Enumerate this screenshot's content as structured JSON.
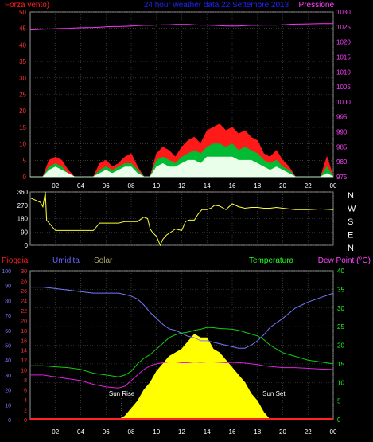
{
  "title": "24 hour weather data 22 Settembre 2013",
  "colors": {
    "background": "#000000",
    "plot_bg": "#000000",
    "grid": "#555555",
    "axis": "#bbbbbb",
    "wind_gust": "#ff1a1a",
    "wind_avg": "#00bb33",
    "wind_speed": "#eaffea",
    "pressure": "#ff33ff",
    "direction": "#ffff33",
    "humidity": "#7777ff",
    "temperature": "#11cc11",
    "dewpoint": "#dd22dd",
    "solar": "#ffff00",
    "rain": "#ff2222",
    "title": "#2222ff",
    "label_red": "#ff2222",
    "label_magenta": "#ff44ff",
    "label_green": "#22ff22",
    "label_white": "#ffffff",
    "label_khaki": "#aaaa66",
    "label_blue": "#6666ff"
  },
  "x_ticks": [
    "02",
    "04",
    "06",
    "08",
    "10",
    "12",
    "14",
    "16",
    "18",
    "20",
    "22",
    "00"
  ],
  "chart_data": [
    {
      "type": "area",
      "panel": "wind-pressure",
      "ylabel_left": "Forza vento)",
      "ylabel_right": "Pressione",
      "ylim_left": [
        0,
        50
      ],
      "ylim_right": [
        975,
        1030
      ],
      "left_ticks": [
        "0",
        "5",
        "10",
        "15",
        "20",
        "25",
        "30",
        "35",
        "40",
        "45",
        "50"
      ],
      "right_ticks": [
        "975",
        "980",
        "985",
        "990",
        "995",
        "1000",
        "1005",
        "1010",
        "1015",
        "1020",
        "1025",
        "1030"
      ],
      "x": [
        0,
        1,
        1.5,
        2,
        2.5,
        3,
        3.5,
        4,
        5,
        5.5,
        6,
        6.5,
        7,
        7.5,
        8,
        8.5,
        9,
        9.5,
        10,
        10.5,
        11,
        11.5,
        12,
        12.5,
        13,
        13.5,
        14,
        14.5,
        15,
        15.5,
        16,
        16.5,
        17,
        17.5,
        18,
        18.5,
        19,
        19.5,
        20,
        20.5,
        21,
        22,
        23,
        23.5,
        24
      ],
      "series": [
        {
          "key": "gust",
          "values": [
            0,
            0,
            5,
            6,
            5,
            2,
            0,
            0,
            0,
            4,
            5,
            3,
            4,
            6,
            7,
            3,
            0,
            0,
            7,
            9,
            8,
            6,
            9,
            11,
            12,
            10,
            14,
            15,
            16,
            14,
            15,
            13,
            14,
            12,
            11,
            7,
            6,
            8,
            5,
            3,
            0,
            0,
            0,
            6,
            0
          ]
        },
        {
          "key": "avg",
          "values": [
            0,
            0,
            3,
            4,
            3,
            1,
            0,
            0,
            0,
            2,
            3,
            2,
            3,
            4,
            4,
            2,
            0,
            0,
            5,
            6,
            5,
            4,
            6,
            7,
            8,
            7,
            9,
            10,
            10,
            9,
            10,
            8,
            9,
            8,
            7,
            5,
            4,
            5,
            3,
            2,
            0,
            0,
            0,
            3,
            0
          ]
        },
        {
          "key": "speed",
          "values": [
            0,
            0,
            2,
            3,
            2,
            1,
            0,
            0,
            0,
            1,
            2,
            1,
            2,
            3,
            3,
            1,
            0,
            0,
            3,
            4,
            3,
            3,
            4,
            5,
            5,
            4,
            6,
            6,
            6,
            6,
            6,
            5,
            5,
            5,
            4,
            3,
            2,
            3,
            2,
            1,
            0,
            0,
            0,
            1,
            0
          ]
        },
        {
          "key": "pressure",
          "values": [
            1024,
            1024.2,
            1024.3,
            1024.4,
            1024.5,
            1024.5,
            1024.6,
            1024.7,
            1024.8,
            1024.9,
            1025,
            1025.1,
            1025.1,
            1025.2,
            1025.3,
            1025.4,
            1025.5,
            1025.5,
            1025.6,
            1025.7,
            1025.7,
            1025.8,
            1025.8,
            1025.8,
            1025.7,
            1025.6,
            1025.6,
            1025.5,
            1025.4,
            1025.3,
            1025.3,
            1025.3,
            1025.4,
            1025.5,
            1025.5,
            1025.6,
            1025.6,
            1025.6,
            1025.7,
            1025.8,
            1025.9,
            1026,
            1026.1,
            1026.1,
            1026.1
          ]
        }
      ]
    },
    {
      "type": "line",
      "panel": "direction",
      "ylim": [
        0,
        360
      ],
      "left_ticks": [
        "0",
        "90",
        "180",
        "270",
        "360"
      ],
      "right_labels": [
        "N",
        "W",
        "S",
        "E",
        "N"
      ],
      "x": [
        0,
        0.8,
        1,
        1.2,
        1.3,
        2,
        3,
        4,
        4.5,
        5,
        5.5,
        6,
        6.5,
        7,
        7.5,
        8,
        8.5,
        9,
        9.3,
        9.5,
        9.7,
        10,
        10.3,
        10.5,
        10.8,
        11,
        11.5,
        12,
        12.3,
        12.6,
        13,
        13.3,
        13.6,
        14,
        14.3,
        14.6,
        15,
        15.5,
        16,
        16.5,
        17,
        17.5,
        18,
        18.5,
        19,
        19.5,
        20,
        21,
        22,
        23,
        24
      ],
      "values": [
        320,
        290,
        260,
        360,
        170,
        100,
        100,
        100,
        100,
        100,
        150,
        150,
        150,
        150,
        160,
        160,
        160,
        190,
        180,
        110,
        85,
        60,
        0,
        40,
        70,
        80,
        110,
        100,
        160,
        170,
        170,
        210,
        240,
        240,
        250,
        270,
        265,
        240,
        280,
        260,
        250,
        255,
        255,
        250,
        250,
        255,
        250,
        240,
        240,
        245,
        240
      ]
    },
    {
      "type": "line",
      "panel": "temp-humidity",
      "ylabel_pioggia": "Pioggia",
      "ylabel_umidita": "Umidita",
      "ylabel_solar": "Solar",
      "ylabel_temp": "Temperatura",
      "ylabel_dew": "Dew Point (°C)",
      "humidity_ticks": [
        "0",
        "10",
        "20",
        "30",
        "40",
        "50",
        "60",
        "70",
        "80",
        "90",
        "100"
      ],
      "rain_ticks": [
        "0",
        "2",
        "4",
        "6",
        "8",
        "10",
        "12",
        "14",
        "16",
        "18",
        "20",
        "22",
        "24",
        "26",
        "28",
        "30"
      ],
      "temp_ticks": [
        "0",
        "5",
        "10",
        "15",
        "20",
        "25",
        "30",
        "35",
        "40"
      ],
      "humidity_ylim": [
        0,
        100
      ],
      "temp_ylim": [
        0,
        40
      ],
      "annotations": [
        {
          "label": "Sun Rise",
          "x": 7.25
        },
        {
          "label": "Sun Set",
          "x": 19.3
        }
      ],
      "x": [
        0,
        1,
        2,
        3,
        4,
        5,
        6,
        7,
        7.5,
        8,
        8.5,
        9,
        9.5,
        10,
        10.5,
        11,
        11.5,
        12,
        12.5,
        13,
        13.5,
        14,
        14.5,
        15,
        15.5,
        16,
        16.5,
        17,
        17.5,
        18,
        18.5,
        19,
        20,
        21,
        22,
        23,
        24
      ],
      "series": [
        {
          "key": "humidity",
          "values": [
            89,
            89,
            88,
            87,
            86,
            85,
            85,
            85,
            84,
            83,
            81,
            77,
            72,
            68,
            64,
            61,
            60,
            58,
            56,
            55,
            53,
            53,
            52,
            51,
            50,
            49,
            48,
            48,
            50,
            53,
            57,
            62,
            68,
            75,
            79,
            82,
            85
          ]
        },
        {
          "key": "temperature",
          "values": [
            14.5,
            14.5,
            14.2,
            14,
            13.5,
            12.5,
            12,
            11.5,
            12,
            13,
            15,
            16.5,
            17.5,
            19,
            20.5,
            22,
            22.8,
            23.3,
            23.5,
            24,
            24.3,
            24.8,
            24.7,
            24.5,
            24.4,
            24.3,
            24,
            23.5,
            23,
            22.5,
            21.5,
            20,
            18,
            17,
            16,
            15.5,
            15
          ]
        },
        {
          "key": "dewpoint",
          "values": [
            12,
            12,
            11.5,
            11,
            10.5,
            9.5,
            8.8,
            8.5,
            9,
            10.5,
            12,
            13.5,
            14.5,
            15,
            15.3,
            15.5,
            15.5,
            15.3,
            15.3,
            15.5,
            15.4,
            15.5,
            15.5,
            15.4,
            15.3,
            15.4,
            15.3,
            15.2,
            15,
            14.8,
            14.5,
            14.3,
            14,
            14,
            13.8,
            13.6,
            13.5
          ]
        },
        {
          "key": "solar",
          "values": [
            0,
            0,
            0,
            0,
            0,
            0,
            0,
            0,
            1,
            3,
            5,
            8,
            10,
            13,
            15,
            17,
            18,
            19,
            21,
            23,
            22,
            22,
            19,
            18,
            16,
            14,
            12,
            10,
            7,
            5,
            2,
            0,
            0,
            0,
            0,
            0,
            0
          ]
        },
        {
          "key": "rain",
          "values": [
            0,
            0,
            0,
            0,
            0,
            0,
            0,
            0,
            0,
            0,
            0,
            0,
            0,
            0,
            0,
            0,
            0,
            0,
            0,
            0,
            0,
            0,
            0,
            0,
            0,
            0,
            0,
            0,
            0,
            0,
            0,
            0,
            0,
            0,
            0,
            0,
            0
          ]
        }
      ]
    }
  ]
}
